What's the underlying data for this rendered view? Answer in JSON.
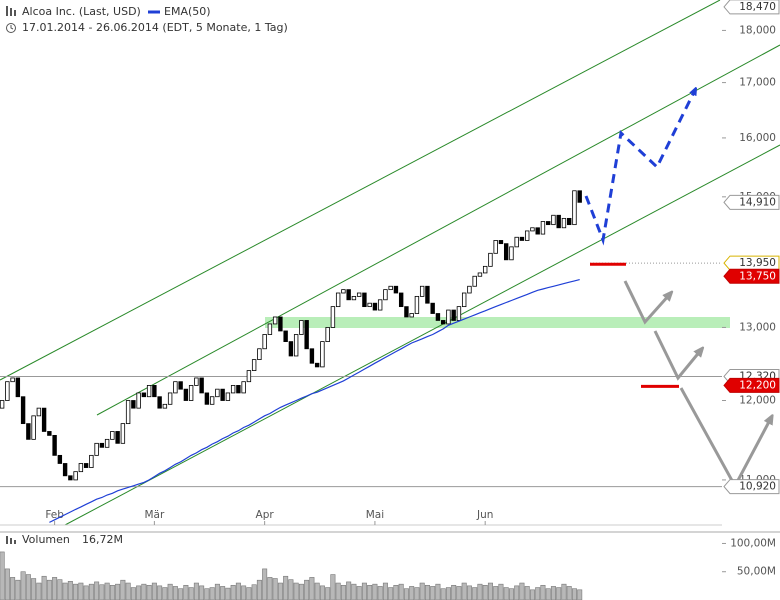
{
  "chart_data": [
    {
      "type": "candlestick",
      "title": "Alcoa Inc. (Last, USD)",
      "subtitle": "17.01.2014 - 26.06.2014 (EDT, 5 Monate, 1 Tag)",
      "log_scale": true,
      "xlim": [
        -0.4,
        137.1
      ],
      "xticks": [
        {
          "value": 10,
          "label": "Feb"
        },
        {
          "value": 29,
          "label": "Mär"
        },
        {
          "value": 50,
          "label": "Apr"
        },
        {
          "value": 71,
          "label": "Mai"
        },
        {
          "value": 92,
          "label": "Jun"
        }
      ],
      "ylim": [
        10.47,
        18.61
      ],
      "yticks": [
        {
          "value": 11,
          "label": "11,000"
        },
        {
          "value": 12,
          "label": "12,000"
        },
        {
          "value": 13,
          "label": "13,000"
        },
        {
          "value": 15,
          "label": "15,000"
        },
        {
          "value": 16,
          "label": "16,000"
        },
        {
          "value": 17,
          "label": "17,000"
        },
        {
          "value": 18,
          "label": "18,000"
        }
      ],
      "up_color": "#ffffff",
      "down_color": "#000000",
      "open": [
        11.9,
        12.0,
        12.25,
        12.3,
        12.05,
        11.7,
        11.5,
        11.8,
        11.9,
        11.6,
        11.55,
        11.3,
        11.2,
        11.05,
        11.0,
        11.1,
        11.2,
        11.15,
        11.3,
        11.45,
        11.4,
        11.5,
        11.6,
        11.45,
        11.7,
        12.0,
        11.9,
        12.1,
        12.05,
        12.2,
        12.05,
        11.9,
        11.95,
        12.1,
        12.25,
        12.15,
        12.0,
        12.2,
        12.3,
        12.1,
        11.95,
        12.05,
        12.15,
        12.0,
        12.1,
        12.2,
        12.1,
        12.25,
        12.4,
        12.55,
        12.7,
        12.9,
        13.05,
        13.15,
        12.95,
        12.8,
        12.6,
        12.9,
        13.1,
        12.7,
        12.5,
        12.45,
        12.8,
        13.0,
        13.3,
        13.5,
        13.55,
        13.4,
        13.45,
        13.5,
        13.3,
        13.35,
        13.25,
        13.4,
        13.55,
        13.6,
        13.5,
        13.3,
        13.15,
        13.2,
        13.45,
        13.6,
        13.35,
        13.2,
        13.1,
        13.05,
        13.25,
        13.1,
        13.3,
        13.5,
        13.6,
        13.75,
        13.8,
        13.9,
        14.1,
        14.3,
        14.25,
        14.0,
        14.2,
        14.35,
        14.3,
        14.45,
        14.5,
        14.4,
        14.6,
        14.55,
        14.7,
        14.5,
        14.65,
        14.55,
        15.1
      ],
      "close": [
        12.0,
        12.25,
        12.3,
        12.05,
        11.7,
        11.5,
        11.8,
        11.9,
        11.6,
        11.55,
        11.3,
        11.2,
        11.05,
        11.0,
        11.1,
        11.2,
        11.15,
        11.3,
        11.45,
        11.4,
        11.5,
        11.6,
        11.45,
        11.7,
        12.0,
        11.9,
        12.1,
        12.05,
        12.2,
        12.05,
        11.9,
        11.95,
        12.1,
        12.25,
        12.15,
        12.0,
        12.2,
        12.3,
        12.1,
        11.95,
        12.05,
        12.15,
        12.0,
        12.1,
        12.2,
        12.1,
        12.25,
        12.4,
        12.55,
        12.7,
        12.9,
        13.05,
        13.15,
        12.95,
        12.8,
        12.6,
        12.9,
        13.1,
        12.7,
        12.5,
        12.45,
        12.8,
        13.0,
        13.3,
        13.5,
        13.55,
        13.4,
        13.45,
        13.5,
        13.3,
        13.35,
        13.25,
        13.4,
        13.55,
        13.6,
        13.5,
        13.3,
        13.15,
        13.2,
        13.45,
        13.6,
        13.35,
        13.2,
        13.1,
        13.05,
        13.25,
        13.1,
        13.3,
        13.5,
        13.6,
        13.75,
        13.8,
        13.9,
        14.1,
        14.3,
        14.25,
        14.0,
        14.2,
        14.35,
        14.3,
        14.45,
        14.5,
        14.4,
        14.6,
        14.55,
        14.7,
        14.5,
        14.65,
        14.55,
        15.1,
        14.91
      ],
      "series": [
        {
          "name": "EMA(50)",
          "color": "#1f3fd6",
          "values": [
            null,
            null,
            null,
            null,
            null,
            null,
            null,
            null,
            null,
            10.5,
            10.53,
            10.56,
            10.59,
            10.62,
            10.65,
            10.68,
            10.71,
            10.74,
            10.77,
            10.79,
            10.82,
            10.84,
            10.87,
            10.89,
            10.91,
            10.93,
            10.95,
            10.97,
            11.0,
            11.04,
            11.08,
            11.11,
            11.15,
            11.19,
            11.22,
            11.26,
            11.3,
            11.33,
            11.37,
            11.4,
            11.44,
            11.47,
            11.51,
            11.54,
            11.58,
            11.61,
            11.65,
            11.68,
            11.72,
            11.76,
            11.8,
            11.83,
            11.87,
            11.91,
            11.94,
            11.97,
            12.0,
            12.03,
            12.06,
            12.09,
            12.11,
            12.14,
            12.17,
            12.2,
            12.23,
            12.26,
            12.3,
            12.34,
            12.38,
            12.42,
            12.46,
            12.5,
            12.54,
            12.58,
            12.62,
            12.66,
            12.7,
            12.74,
            12.78,
            12.81,
            12.84,
            12.87,
            12.9,
            12.94,
            12.98,
            13.03,
            13.06,
            13.09,
            13.12,
            13.15,
            13.18,
            13.21,
            13.24,
            13.27,
            13.3,
            13.33,
            13.36,
            13.39,
            13.42,
            13.45,
            13.48,
            13.51,
            13.54,
            13.56,
            13.58,
            13.6,
            13.62,
            13.64,
            13.66,
            13.68,
            13.7
          ]
        }
      ],
      "annotations": [
        {
          "value": 18.47,
          "label": "18,470",
          "color": "#ffffff"
        },
        {
          "value": 14.91,
          "label": "14,910",
          "color": "#ffffff"
        },
        {
          "value": 13.95,
          "label": "13,950",
          "color": "#ffffff"
        },
        {
          "value": 13.75,
          "label": "13,750",
          "color": "#e00000"
        },
        {
          "value": 12.32,
          "label": "12,320",
          "color": "#ffffff"
        },
        {
          "value": 12.2,
          "label": "12,200",
          "color": "#e00000"
        },
        {
          "value": 10.92,
          "label": "10,920",
          "color": "#ffffff"
        }
      ]
    },
    {
      "type": "bar",
      "title": "Volumen",
      "subtitle": "16,72M",
      "color": "#b8b8b8",
      "xlim": [
        -0.4,
        137.1
      ],
      "ylim": [
        0,
        118.5
      ],
      "yticks": [
        {
          "value": 50,
          "label": "50,00M"
        },
        {
          "value": 100,
          "label": "100,00M"
        }
      ],
      "values": [
        85,
        55,
        40,
        35,
        50,
        45,
        38,
        30,
        42,
        35,
        40,
        36,
        30,
        33,
        28,
        30,
        25,
        28,
        32,
        27,
        30,
        26,
        28,
        35,
        30,
        22,
        25,
        28,
        26,
        30,
        25,
        22,
        28,
        24,
        20,
        26,
        22,
        30,
        25,
        20,
        22,
        28,
        24,
        21,
        26,
        30,
        25,
        22,
        27,
        35,
        55,
        40,
        38,
        30,
        42,
        36,
        30,
        28,
        35,
        40,
        30,
        25,
        22,
        45,
        30,
        26,
        32,
        28,
        24,
        30,
        26,
        28,
        24,
        30,
        22,
        26,
        28,
        20,
        24,
        22,
        30,
        26,
        24,
        28,
        20,
        22,
        26,
        24,
        30,
        25,
        22,
        28,
        26,
        30,
        24,
        28,
        22,
        20,
        25,
        30,
        24,
        18,
        22,
        26,
        20,
        24,
        22,
        28,
        24,
        20,
        18
      ]
    }
  ]
}
